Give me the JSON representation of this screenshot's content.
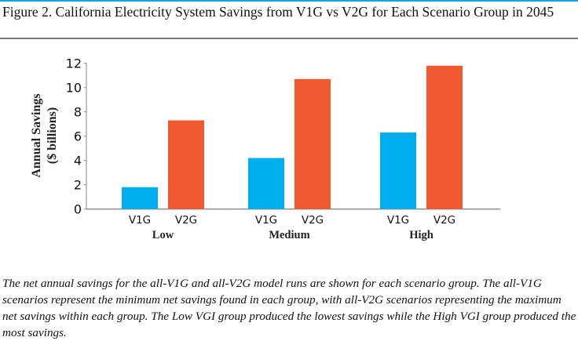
{
  "figure": {
    "title": "Figure 2. California Electricity System Savings from V1G vs V2G for Each Scenario Group in 2045",
    "caption": "The net annual savings for the all-V1G and all-V2G model runs are shown for each scenario group. The all-V1G scenarios represent the minimum net savings found in each group, with all-V2G scenarios representing the maximum net savings within each group. The Low VGI group produced the lowest savings while the High VGI group produced the most savings."
  },
  "chart_data": {
    "type": "bar",
    "title": "",
    "ylabel_line1": "Annual Savings",
    "ylabel_line2": "($ billions)",
    "xlabel": "",
    "ylim": [
      0,
      12
    ],
    "yticks": [
      "0",
      "2",
      "4",
      "6",
      "8",
      "10",
      "12"
    ],
    "grid": false,
    "groups": [
      "Low",
      "Medium",
      "High"
    ],
    "subcategories": [
      "V1G",
      "V2G"
    ],
    "series": [
      {
        "values": [
          1.8,
          4.2,
          6.3
        ],
        "color": "#00aeef"
      },
      {
        "values": [
          7.3,
          10.7,
          11.8
        ],
        "color": "#f15a31"
      }
    ]
  }
}
